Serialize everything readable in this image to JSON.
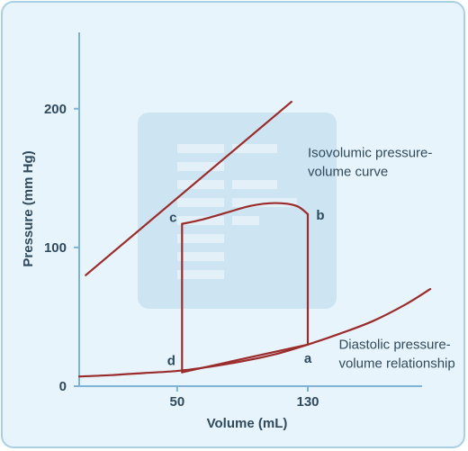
{
  "chart_data": {
    "type": "line",
    "title": "",
    "xlabel": "Volume (mL)",
    "ylabel": "Pressure (mm Hg)",
    "x_ticks": [
      50,
      130
    ],
    "y_ticks": [
      0,
      100,
      200
    ],
    "xlim": [
      -10,
      200
    ],
    "ylim": [
      0,
      255
    ],
    "colors": {
      "curve": "#9b2c2c",
      "axis": "#7fb3d5",
      "text": "#2f4a5c",
      "background": "#e8f4fb",
      "watermark": "#cde5f2"
    },
    "series": [
      {
        "id": "isovolumic",
        "points": [
          [
            -6,
            80
          ],
          [
            120,
            205
          ]
        ]
      },
      {
        "id": "diastolic",
        "points": [
          [
            -10,
            7
          ],
          [
            10,
            8
          ],
          [
            30,
            9.5
          ],
          [
            50,
            11
          ],
          [
            70,
            14
          ],
          [
            90,
            18
          ],
          [
            110,
            23
          ],
          [
            130,
            30
          ],
          [
            150,
            38
          ],
          [
            170,
            47
          ],
          [
            190,
            59
          ],
          [
            205,
            70
          ]
        ]
      },
      {
        "id": "loop-filling",
        "points": [
          [
            53,
            10
          ],
          [
            130,
            30
          ]
        ]
      },
      {
        "id": "loop-isovolumic-contraction",
        "points": [
          [
            130,
            30
          ],
          [
            130,
            124
          ]
        ]
      },
      {
        "id": "loop-ejection",
        "points": [
          [
            130,
            124
          ],
          [
            123,
            130
          ],
          [
            110,
            132
          ],
          [
            95,
            130
          ],
          [
            80,
            125
          ],
          [
            65,
            120
          ],
          [
            53,
            117
          ]
        ]
      },
      {
        "id": "loop-isovolumic-relaxation",
        "points": [
          [
            53,
            117
          ],
          [
            53,
            10
          ]
        ]
      }
    ],
    "point_labels": [
      {
        "text": "a",
        "x": 130,
        "y": 30
      },
      {
        "text": "b",
        "x": 130,
        "y": 124
      },
      {
        "text": "c",
        "x": 53,
        "y": 117
      },
      {
        "text": "d",
        "x": 53,
        "y": 10
      }
    ],
    "annotations": [
      {
        "lines": [
          "Isovolumic pressure-",
          "volume curve"
        ],
        "x": 130,
        "y": 165
      },
      {
        "lines": [
          "Diastolic pressure-",
          "volume relationship"
        ],
        "x": 149,
        "y": 27
      }
    ]
  }
}
